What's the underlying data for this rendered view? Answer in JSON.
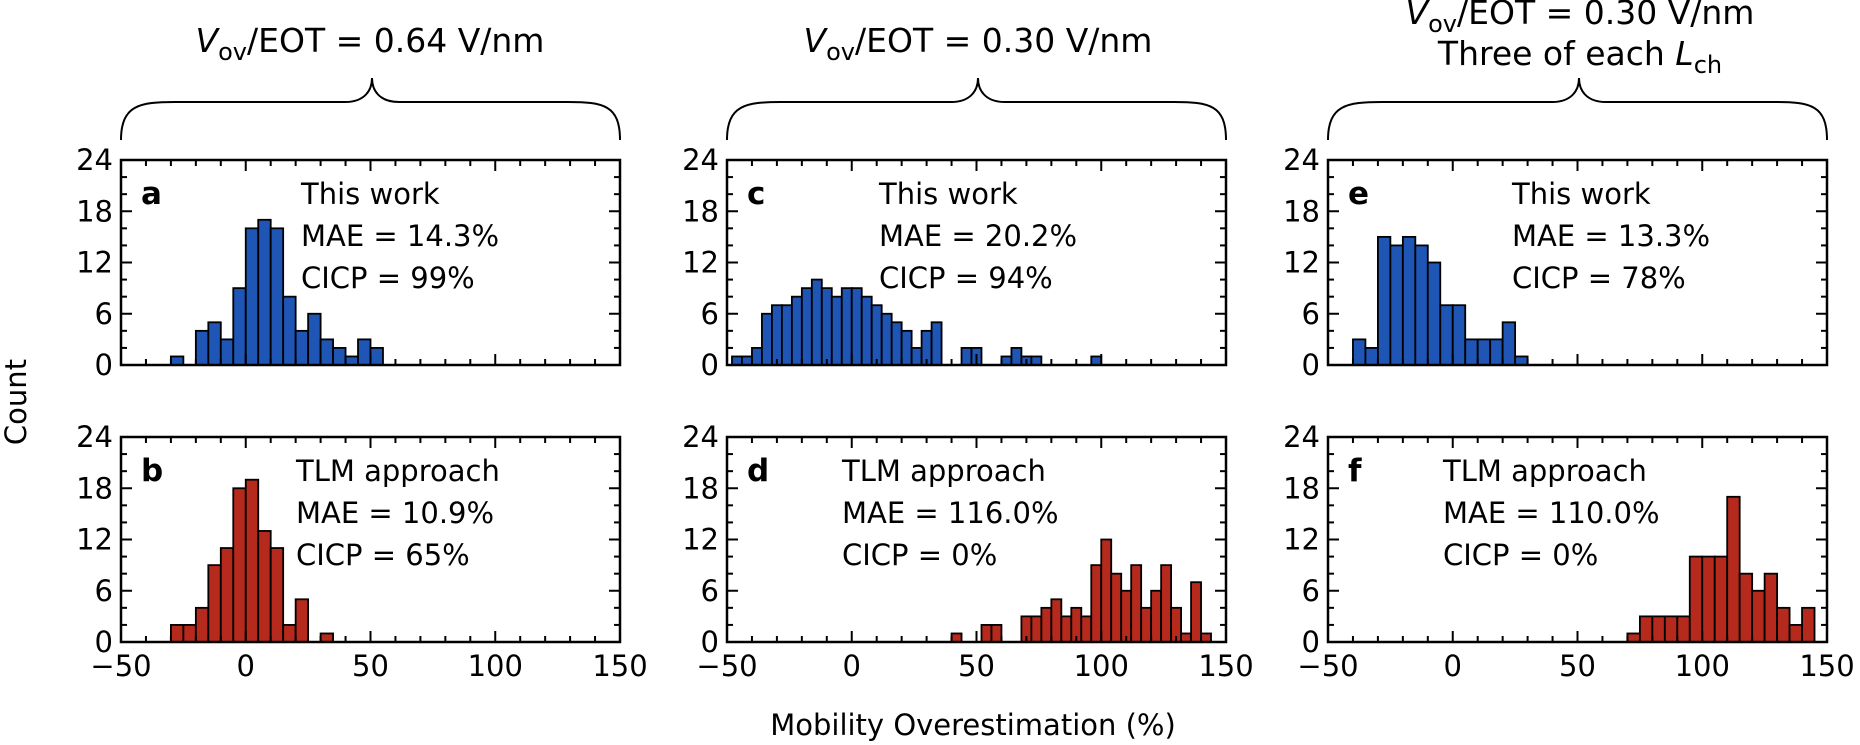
{
  "figure": {
    "ylabel": "Count",
    "xlabel": "Mobility Overestimation (%)",
    "blue_color": "#1f55b4",
    "red_color": "#b52a1c",
    "headers": [
      {
        "ratio_prefix": "V",
        "ratio_sub": "ov",
        "ratio_rest": "/EOT = 0.64 V/nm"
      },
      {
        "ratio_prefix": "V",
        "ratio_sub": "ov",
        "ratio_rest": "/EOT = 0.30 V/nm"
      },
      {
        "ratio_prefix": "V",
        "ratio_sub": "ov",
        "ratio_rest": "/EOT = 0.30 V/nm",
        "line2_main": "Three of each ",
        "line2_var": "L",
        "line2_sub": "ch"
      }
    ]
  },
  "chart_data": [
    {
      "type": "bar",
      "id": "a",
      "letter": "a",
      "color": "blue",
      "annotation": [
        "This work",
        "MAE = 14.3%",
        "CICP = 99%"
      ],
      "bin_width": 5,
      "xlim": [
        -50,
        150
      ],
      "ylim": [
        0,
        24
      ],
      "xticks": [
        -50,
        0,
        50,
        100,
        150
      ],
      "xticklabels": [
        "−50",
        "0",
        "50",
        "100",
        "150"
      ],
      "yticks": [
        0,
        6,
        12,
        18,
        24
      ],
      "yticklabels": [
        "0",
        "6",
        "12",
        "18",
        "24"
      ],
      "bin_starts": [
        -30,
        -20,
        -15,
        -10,
        -5,
        0,
        5,
        10,
        15,
        20,
        25,
        30,
        35,
        40,
        45,
        50
      ],
      "counts": [
        1,
        4,
        5,
        3,
        9,
        16,
        17,
        16,
        8,
        4,
        6,
        3,
        2,
        1,
        3,
        2
      ]
    },
    {
      "type": "bar",
      "id": "c",
      "letter": "c",
      "color": "blue",
      "annotation": [
        "This work",
        "MAE = 20.2%",
        "CICP = 94%"
      ],
      "bin_width": 4,
      "xlim": [
        -50,
        150
      ],
      "ylim": [
        0,
        24
      ],
      "xticks": [
        -50,
        0,
        50,
        100,
        150
      ],
      "xticklabels": [
        "−50",
        "0",
        "50",
        "100",
        "150"
      ],
      "yticks": [
        0,
        6,
        12,
        18,
        24
      ],
      "yticklabels": [
        "0",
        "6",
        "12",
        "18",
        "24"
      ],
      "bin_starts": [
        -48,
        -44,
        -40,
        -36,
        -32,
        -28,
        -24,
        -20,
        -16,
        -12,
        -8,
        -4,
        0,
        4,
        8,
        12,
        16,
        20,
        24,
        28,
        32,
        44,
        48,
        60,
        64,
        68,
        72,
        96
      ],
      "counts": [
        1,
        1,
        2,
        6,
        7,
        7,
        8,
        9,
        10,
        9,
        8,
        9,
        9,
        8,
        7,
        6,
        5,
        4,
        2,
        4,
        5,
        2,
        2,
        1,
        2,
        1,
        1,
        1
      ]
    },
    {
      "type": "bar",
      "id": "e",
      "letter": "e",
      "color": "blue",
      "annotation": [
        "This work",
        "MAE = 13.3%",
        "CICP = 78%"
      ],
      "bin_width": 5,
      "xlim": [
        -50,
        150
      ],
      "ylim": [
        0,
        24
      ],
      "xticks": [
        -50,
        0,
        50,
        100,
        150
      ],
      "xticklabels": [
        "−50",
        "0",
        "50",
        "100",
        "150"
      ],
      "yticks": [
        0,
        6,
        12,
        18,
        24
      ],
      "yticklabels": [
        "0",
        "6",
        "12",
        "18",
        "24"
      ],
      "bin_starts": [
        -40,
        -35,
        -30,
        -25,
        -20,
        -15,
        -10,
        -5,
        0,
        5,
        10,
        15,
        20,
        25
      ],
      "counts": [
        3,
        2,
        15,
        14,
        15,
        14,
        12,
        7,
        7,
        3,
        3,
        3,
        5,
        1
      ]
    },
    {
      "type": "bar",
      "id": "b",
      "letter": "b",
      "color": "red",
      "annotation": [
        "TLM approach",
        "MAE = 10.9%",
        "CICP = 65%"
      ],
      "bin_width": 5,
      "xlim": [
        -50,
        150
      ],
      "ylim": [
        0,
        24
      ],
      "xticks": [
        -50,
        0,
        50,
        100,
        150
      ],
      "xticklabels": [
        "−50",
        "0",
        "50",
        "100",
        "150"
      ],
      "yticks": [
        0,
        6,
        12,
        18,
        24
      ],
      "yticklabels": [
        "0",
        "6",
        "12",
        "18",
        "24"
      ],
      "bin_starts": [
        -30,
        -25,
        -20,
        -15,
        -10,
        -5,
        0,
        5,
        10,
        15,
        20,
        30
      ],
      "counts": [
        2,
        2,
        4,
        9,
        11,
        18,
        19,
        13,
        11,
        2,
        5,
        1
      ]
    },
    {
      "type": "bar",
      "id": "d",
      "letter": "d",
      "color": "red",
      "annotation": [
        "TLM approach",
        "MAE = 116.0%",
        "CICP = 0%"
      ],
      "bin_width": 4,
      "xlim": [
        -50,
        150
      ],
      "ylim": [
        0,
        24
      ],
      "xticks": [
        -50,
        0,
        50,
        100,
        150
      ],
      "xticklabels": [
        "−50",
        "0",
        "50",
        "100",
        "150"
      ],
      "yticks": [
        0,
        6,
        12,
        18,
        24
      ],
      "yticklabels": [
        "0",
        "6",
        "12",
        "18",
        "24"
      ],
      "bin_starts": [
        40,
        52,
        56,
        68,
        72,
        76,
        80,
        84,
        88,
        92,
        96,
        100,
        104,
        108,
        112,
        116,
        120,
        124,
        128,
        132,
        136,
        140
      ],
      "counts": [
        1,
        2,
        2,
        3,
        3,
        4,
        5,
        3,
        4,
        3,
        9,
        12,
        8,
        6,
        9,
        4,
        6,
        9,
        4,
        1,
        7,
        1
      ]
    },
    {
      "type": "bar",
      "id": "f",
      "letter": "f",
      "color": "red",
      "annotation": [
        "TLM approach",
        "MAE = 110.0%",
        "CICP = 0%"
      ],
      "bin_width": 5,
      "xlim": [
        -50,
        150
      ],
      "ylim": [
        0,
        24
      ],
      "xticks": [
        -50,
        0,
        50,
        100,
        150
      ],
      "xticklabels": [
        "−50",
        "0",
        "50",
        "100",
        "150"
      ],
      "yticks": [
        0,
        6,
        12,
        18,
        24
      ],
      "yticklabels": [
        "0",
        "6",
        "12",
        "18",
        "24"
      ],
      "bin_starts": [
        70,
        75,
        80,
        85,
        90,
        95,
        100,
        105,
        110,
        115,
        120,
        125,
        130,
        135,
        140
      ],
      "counts": [
        1,
        3,
        3,
        3,
        3,
        10,
        10,
        10,
        17,
        8,
        6,
        8,
        4,
        2,
        4
      ]
    }
  ]
}
